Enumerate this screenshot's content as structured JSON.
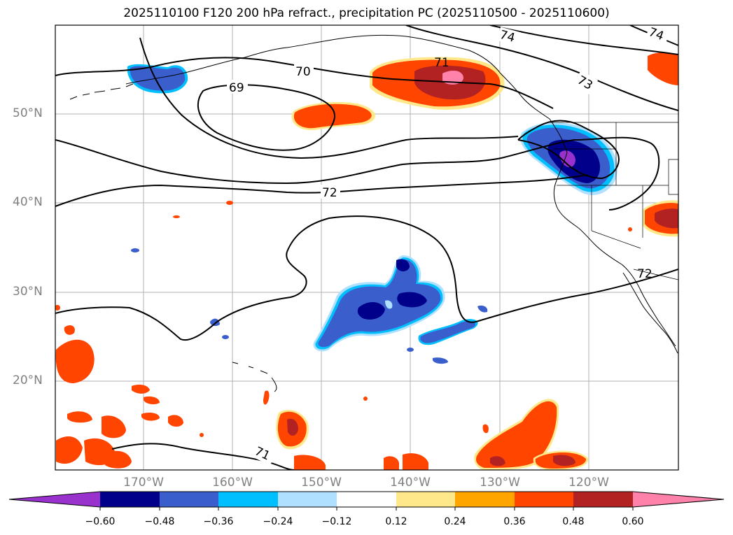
{
  "title": "2025110100 F120 200 hPa refract., precipitation PC (2025110500 - 2025110600)",
  "lat_labels": [
    "50°N",
    "40°N",
    "30°N",
    "20°N"
  ],
  "lon_labels": [
    "170°W",
    "160°W",
    "150°W",
    "140°W",
    "130°W",
    "120°W"
  ],
  "contour_labels": [
    "69",
    "70",
    "71",
    "72",
    "73",
    "74",
    "74",
    "72",
    "71"
  ],
  "colorbar": {
    "ticks": [
      "−0.60",
      "−0.48",
      "−0.36",
      "−0.24",
      "−0.12",
      "0.12",
      "0.24",
      "0.36",
      "0.48",
      "0.60"
    ],
    "colors": [
      "#9932cc",
      "#00008b",
      "#3a5fcd",
      "#00bfff",
      "#b0e0ff",
      "#ffffff",
      "#ffe88a",
      "#ffa500",
      "#ff4500",
      "#b22222",
      "#ff82ab"
    ]
  },
  "colors": {
    "neg_deep": "#00008b",
    "neg_mid": "#3a5fcd",
    "neg_light": "#00bfff",
    "neg_pale": "#b0e0ff",
    "neg_extreme": "#9932cc",
    "pos_pale": "#ffe88a",
    "pos_light": "#ffa500",
    "pos_mid": "#ff4500",
    "pos_deep": "#b22222",
    "pos_extreme": "#ff82ab"
  }
}
